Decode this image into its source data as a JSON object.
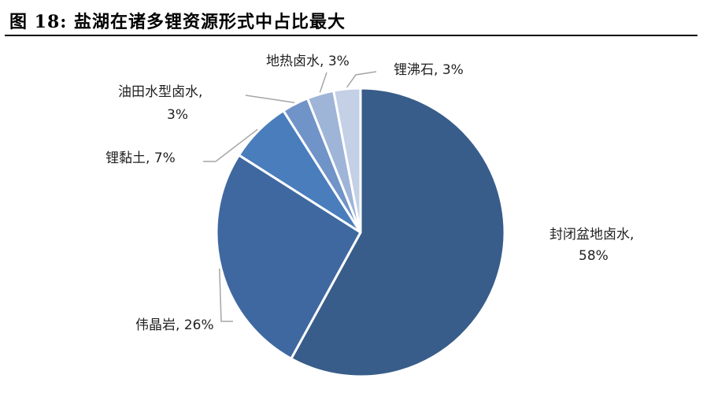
{
  "figure": {
    "title": "图 18:  盐湖在诸多锂资源形式中占比最大"
  },
  "chart_data": {
    "type": "pie",
    "start_angle_deg": 0,
    "direction": "clockwise",
    "slices": [
      {
        "label": "封闭盆地卤水",
        "value": 58,
        "display": "58%",
        "color": "#385d8a"
      },
      {
        "label": "伟晶岩",
        "value": 26,
        "display": "26%",
        "color": "#3f68a0"
      },
      {
        "label": "锂黏土",
        "value": 7,
        "display": "7%",
        "color": "#4a7dbb"
      },
      {
        "label": "油田水型卤水",
        "value": 3,
        "display": "3%",
        "color": "#7093c8"
      },
      {
        "label": "地热卤水",
        "value": 3,
        "display": "3%",
        "color": "#9fb5d7"
      },
      {
        "label": "锂沸石",
        "value": 3,
        "display": "3%",
        "color": "#c3d0e6"
      }
    ]
  }
}
